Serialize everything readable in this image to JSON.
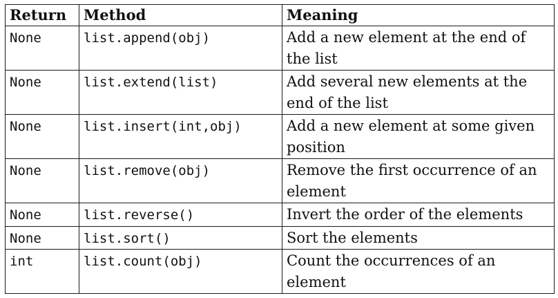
{
  "table": {
    "headers": [
      "Return",
      "Method",
      "Meaning"
    ],
    "rows": [
      {
        "return": "None",
        "method": "list.append(obj)",
        "meaning": "Add a new element at the end of the list"
      },
      {
        "return": "None",
        "method": "list.extend(list)",
        "meaning": "Add several new elements at the end of the list"
      },
      {
        "return": "None",
        "method": "list.insert(int,obj)",
        "meaning": "Add a new element at some given position"
      },
      {
        "return": "None",
        "method": "list.remove(obj)",
        "meaning": "Remove the first occurrence of an element"
      },
      {
        "return": "None",
        "method": "list.reverse()",
        "meaning": "Invert the order of the elements"
      },
      {
        "return": "None",
        "method": "list.sort()",
        "meaning": "Sort the elements"
      },
      {
        "return": "int",
        "method": "list.count(obj)",
        "meaning": "Count the occurrences of an element"
      }
    ]
  }
}
